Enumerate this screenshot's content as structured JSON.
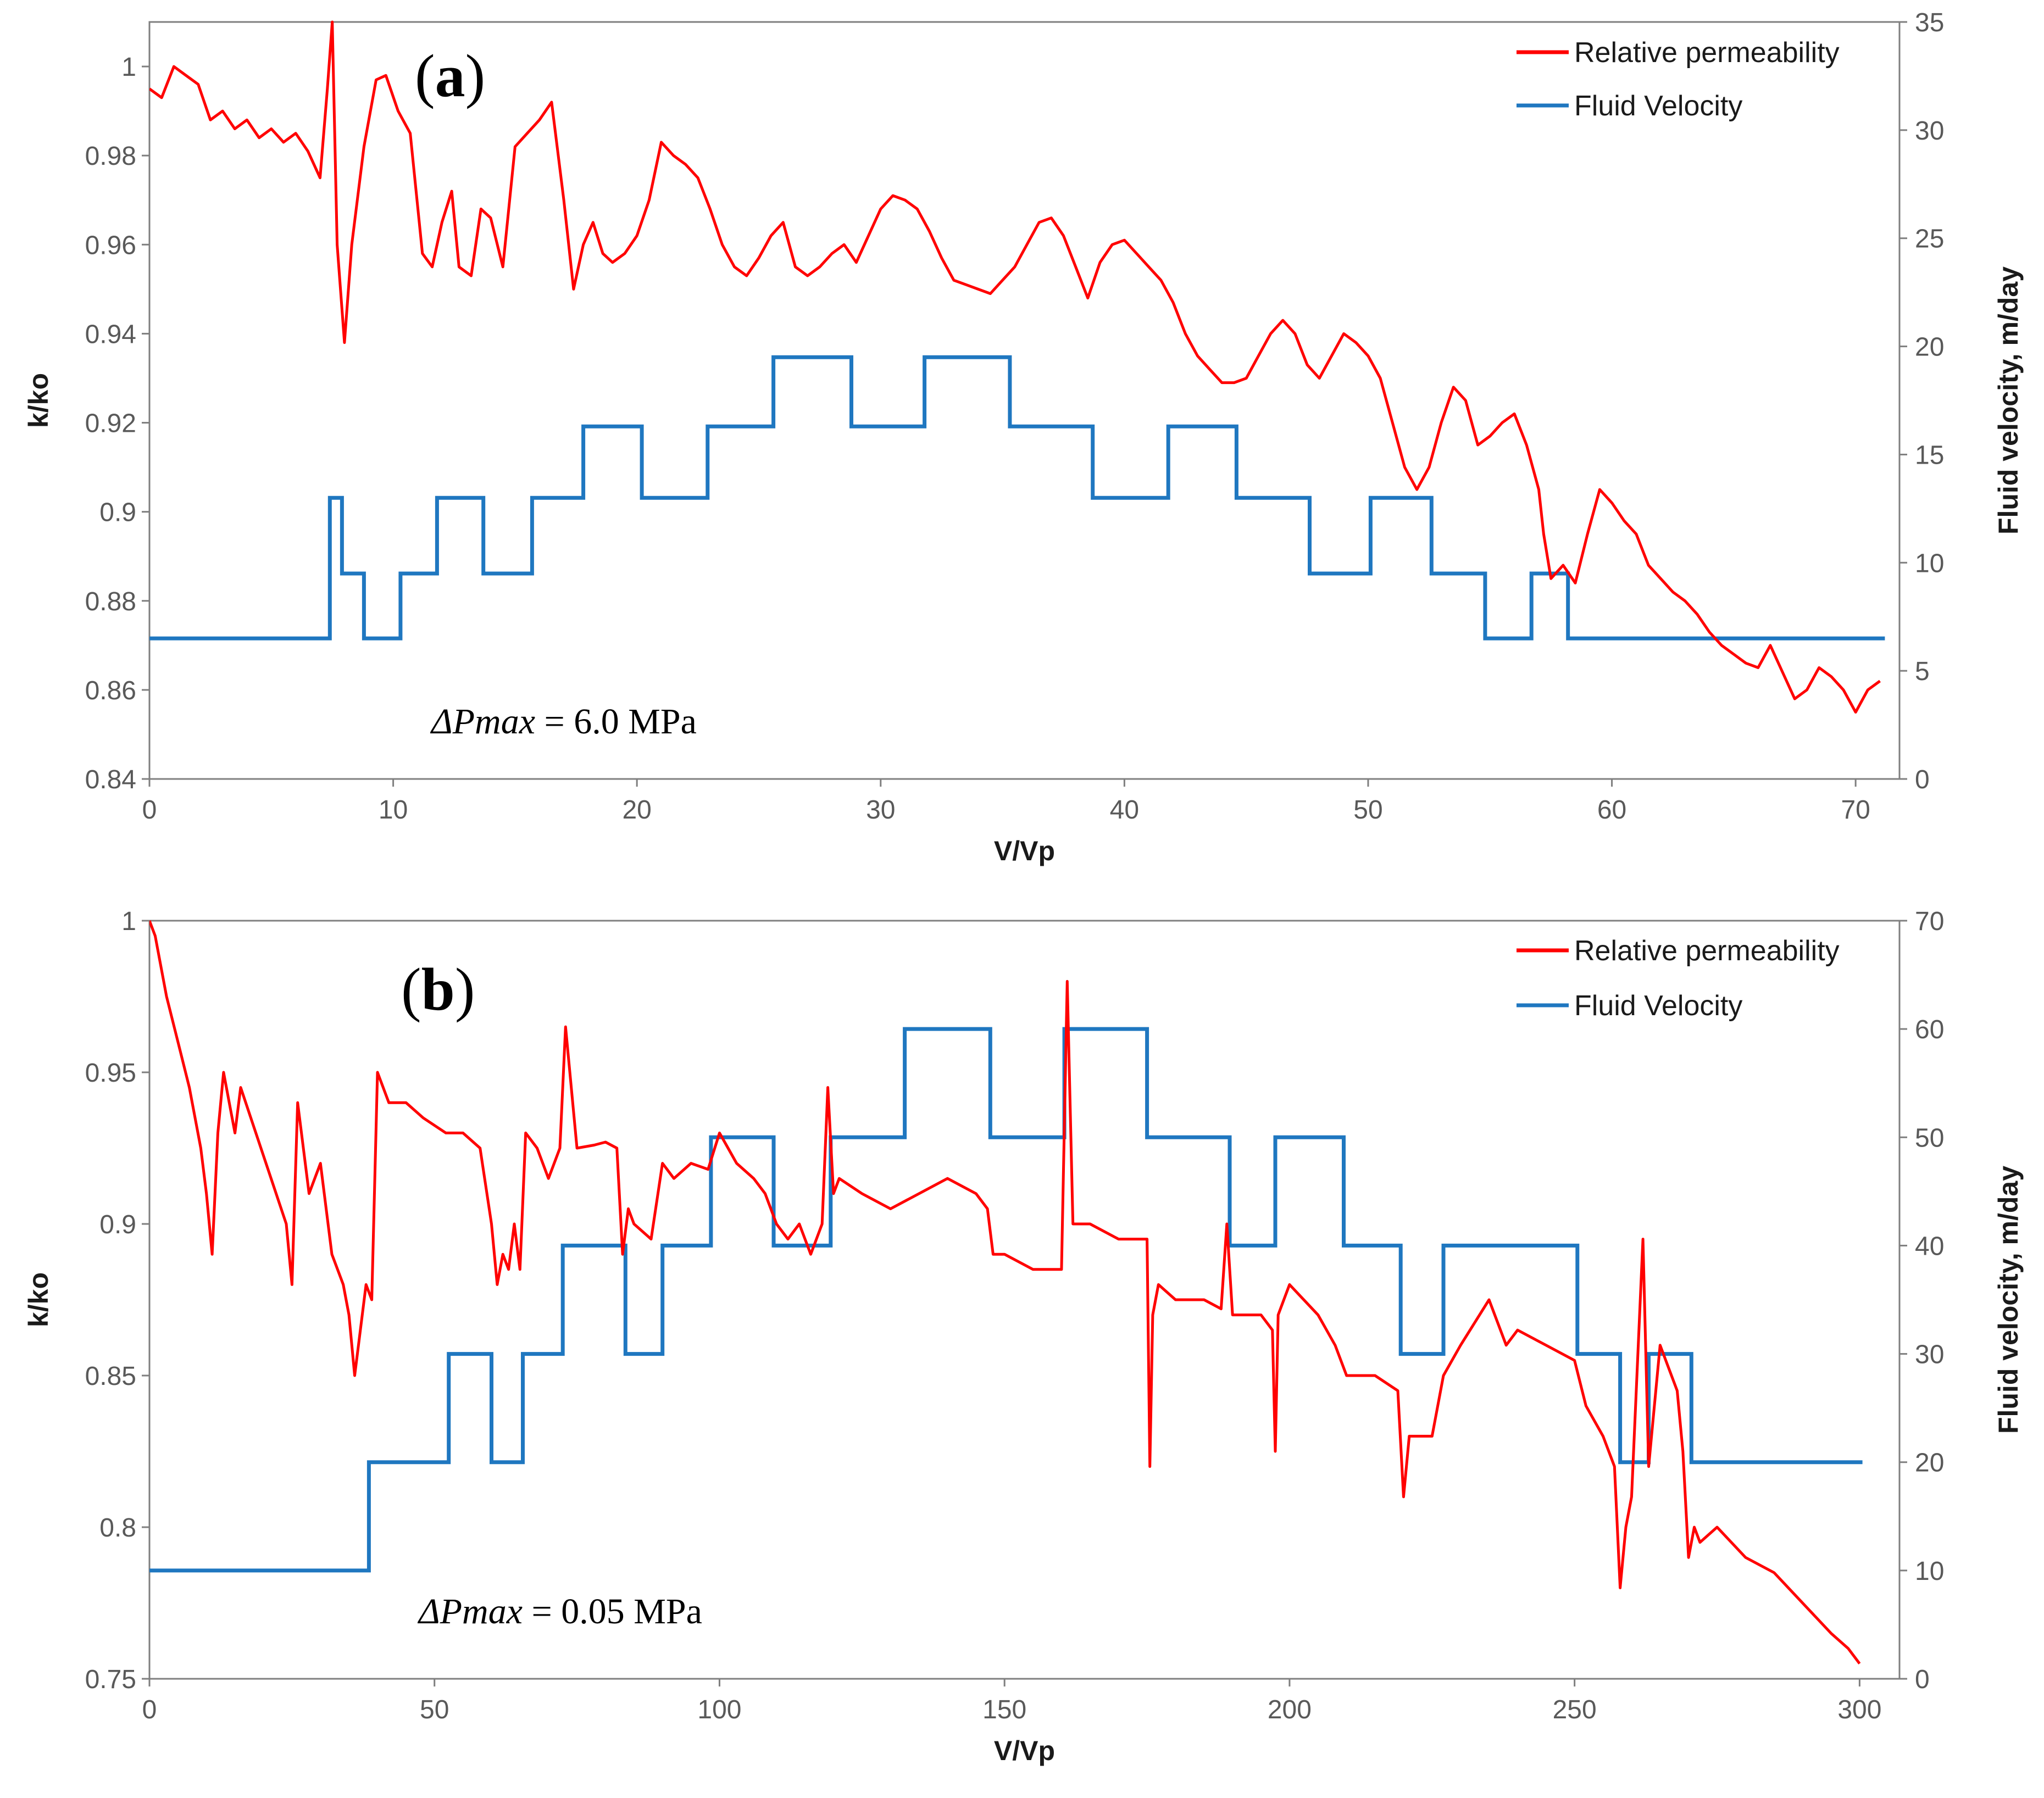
{
  "colors": {
    "permeability": "#ff0000",
    "velocity": "#1f77c0"
  },
  "chart_data": [
    {
      "type": "line",
      "panel_label": "a",
      "xlabel": "V/Vp",
      "ylabel": "k/ko",
      "y2label": "Fluid velocity, m/day",
      "xlim": [
        0,
        71.8
      ],
      "ylim": [
        0.84,
        1.01
      ],
      "y2lim": [
        0,
        35
      ],
      "x_ticks": [
        0,
        10,
        20,
        30,
        40,
        50,
        60,
        70
      ],
      "y_ticks": [
        0.84,
        0.86,
        0.88,
        0.9,
        0.92,
        0.94,
        0.96,
        0.98,
        1
      ],
      "y_tick_labels": [
        "0.84",
        "0.86",
        "0.88",
        "0.9",
        "0.92",
        "0.94",
        "0.96",
        "0.98",
        "1"
      ],
      "y2_ticks": [
        0,
        5,
        10,
        15,
        20,
        25,
        30,
        35
      ],
      "legend": {
        "position": "top-right",
        "entries": [
          "Relative permeability",
          "Fluid Velocity"
        ]
      },
      "annotation": {
        "delta": "ΔPmax",
        "rest": " = 6.0 MPa"
      },
      "grid": false,
      "series": [
        {
          "name": "Relative permeability",
          "axis": "left",
          "x": [
            0,
            0.5,
            1,
            1.5,
            2,
            2.5,
            3,
            3.5,
            4,
            4.5,
            5,
            5.5,
            6,
            6.5,
            7,
            7.3,
            7.5,
            7.7,
            8,
            8.3,
            8.8,
            9.3,
            9.7,
            10.2,
            10.7,
            11.2,
            11.6,
            12,
            12.4,
            12.7,
            13.2,
            13.6,
            14,
            14.5,
            15,
            15.5,
            16,
            16.5,
            17,
            17.4,
            17.8,
            18.2,
            18.6,
            19,
            19.5,
            20,
            20.5,
            21,
            21.5,
            22,
            22.5,
            23,
            23.5,
            24,
            24.5,
            25,
            25.5,
            26,
            26.5,
            27,
            27.5,
            28,
            28.5,
            29,
            29.5,
            30,
            30.5,
            31,
            31.5,
            32,
            32.5,
            33,
            33.5,
            34,
            34.5,
            35,
            35.5,
            36,
            36.5,
            37,
            37.5,
            38,
            38.5,
            39,
            39.5,
            40,
            40.5,
            41,
            41.5,
            42,
            42.5,
            43,
            43.5,
            44,
            44.5,
            45,
            45.5,
            46,
            46.5,
            47,
            47.5,
            48,
            48.5,
            49,
            49.5,
            50,
            50.5,
            51,
            51.5,
            52,
            52.5,
            53,
            53.5,
            54,
            54.5,
            55,
            55.5,
            56,
            56.5,
            57,
            57.2,
            57.5,
            58,
            58.5,
            59,
            59.5,
            60,
            60.5,
            61,
            61.5,
            62,
            62.5,
            63,
            63.5,
            64,
            64.5,
            65,
            65.5,
            66,
            66.5,
            67,
            67.5,
            68,
            68.5,
            69,
            69.5,
            70,
            70.5,
            71
          ],
          "y": [
            0.995,
            0.993,
            1,
            0.998,
            0.996,
            0.988,
            0.99,
            0.986,
            0.988,
            0.984,
            0.986,
            0.983,
            0.985,
            0.981,
            0.975,
            0.995,
            1.01,
            0.96,
            0.938,
            0.96,
            0.982,
            0.997,
            0.998,
            0.99,
            0.985,
            0.958,
            0.955,
            0.965,
            0.972,
            0.955,
            0.953,
            0.968,
            0.966,
            0.955,
            0.982,
            0.985,
            0.988,
            0.992,
            0.97,
            0.95,
            0.96,
            0.965,
            0.958,
            0.956,
            0.958,
            0.962,
            0.97,
            0.983,
            0.98,
            0.978,
            0.975,
            0.968,
            0.96,
            0.955,
            0.953,
            0.957,
            0.962,
            0.965,
            0.955,
            0.953,
            0.955,
            0.958,
            0.96,
            0.956,
            0.962,
            0.968,
            0.971,
            0.97,
            0.968,
            0.963,
            0.957,
            0.952,
            0.951,
            0.95,
            0.949,
            0.952,
            0.955,
            0.96,
            0.965,
            0.966,
            0.962,
            0.955,
            0.948,
            0.956,
            0.96,
            0.961,
            0.958,
            0.955,
            0.952,
            0.947,
            0.94,
            0.935,
            0.932,
            0.929,
            0.929,
            0.93,
            0.935,
            0.94,
            0.943,
            0.94,
            0.933,
            0.93,
            0.935,
            0.94,
            0.938,
            0.935,
            0.93,
            0.92,
            0.91,
            0.905,
            0.91,
            0.92,
            0.928,
            0.925,
            0.915,
            0.917,
            0.92,
            0.922,
            0.915,
            0.905,
            0.895,
            0.885,
            0.888,
            0.884,
            0.895,
            0.905,
            0.902,
            0.898,
            0.895,
            0.888,
            0.885,
            0.882,
            0.88,
            0.877,
            0.873,
            0.87,
            0.868,
            0.866,
            0.865,
            0.87,
            0.864,
            0.858,
            0.86,
            0.865,
            0.863,
            0.86,
            0.855,
            0.86,
            0.862
          ]
        },
        {
          "name": "Fluid Velocity",
          "axis": "right",
          "step_breaks": [
            0,
            7.4,
            7.9,
            8.8,
            10.3,
            11.8,
            13.7,
            15.7,
            17.8,
            20.2,
            22.9,
            25.6,
            28.8,
            31.8,
            35.3,
            38.7,
            41.8,
            44.6,
            47.6,
            50.1,
            52.6,
            54.8,
            56.7,
            58.2,
            71.2
          ],
          "values": [
            6.5,
            13,
            9.5,
            6.5,
            9.5,
            13,
            9.5,
            13,
            16.3,
            13,
            16.3,
            19.5,
            16.3,
            19.5,
            16.3,
            13,
            16.3,
            13,
            9.5,
            13,
            9.5,
            6.5,
            9.5,
            6.5
          ]
        }
      ]
    },
    {
      "type": "line",
      "panel_label": "b",
      "xlabel": "V/Vp",
      "ylabel": "k/ko",
      "y2label": "Fluid velocity, m/day",
      "xlim": [
        0,
        307
      ],
      "ylim": [
        0.75,
        1
      ],
      "y2lim": [
        0,
        70
      ],
      "x_ticks": [
        0,
        50,
        100,
        150,
        200,
        250,
        300
      ],
      "y_ticks": [
        0.75,
        0.8,
        0.85,
        0.9,
        0.95,
        1
      ],
      "y_tick_labels": [
        "0.75",
        "0.8",
        "0.85",
        "0.9",
        "0.95",
        "1"
      ],
      "y2_ticks": [
        0,
        10,
        20,
        30,
        40,
        50,
        60,
        70
      ],
      "legend": {
        "position": "top-right",
        "entries": [
          "Relative permeability",
          "Fluid Velocity"
        ]
      },
      "annotation": {
        "delta": "ΔPmax",
        "rest": " = 0.05 MPa"
      },
      "grid": false,
      "series": [
        {
          "name": "Relative permeability",
          "axis": "left",
          "x": [
            0,
            1,
            3,
            5,
            7,
            9,
            10,
            11,
            12,
            13,
            14,
            15,
            16,
            24,
            25,
            26,
            28,
            30,
            32,
            34,
            35,
            36,
            38,
            39,
            40,
            42,
            45,
            48,
            52,
            55,
            58,
            60,
            61,
            62,
            63,
            64,
            65,
            66,
            68,
            70,
            72,
            73,
            75,
            78,
            80,
            82,
            83,
            84,
            85,
            88,
            90,
            92,
            95,
            98,
            100,
            103,
            106,
            108,
            110,
            112,
            114,
            116,
            118,
            119,
            120,
            121,
            125,
            130,
            135,
            140,
            145,
            147,
            148,
            150,
            155,
            160,
            161,
            162,
            165,
            170,
            175,
            175.5,
            176,
            177,
            180,
            185,
            188,
            189,
            190,
            195,
            197,
            197.5,
            198,
            200,
            205,
            208,
            210,
            212,
            215,
            219,
            220,
            221,
            225,
            227,
            230,
            235,
            238,
            240,
            245,
            250,
            252,
            255,
            257,
            258,
            259,
            260,
            262,
            263,
            265,
            268,
            269,
            270,
            271,
            272,
            275,
            280,
            285,
            290,
            295,
            298,
            300
          ],
          "y": [
            1,
            0.995,
            0.975,
            0.96,
            0.945,
            0.925,
            0.91,
            0.89,
            0.93,
            0.95,
            0.94,
            0.93,
            0.945,
            0.9,
            0.88,
            0.94,
            0.91,
            0.92,
            0.89,
            0.88,
            0.87,
            0.85,
            0.88,
            0.875,
            0.95,
            0.94,
            0.94,
            0.935,
            0.93,
            0.93,
            0.925,
            0.9,
            0.88,
            0.89,
            0.885,
            0.9,
            0.885,
            0.93,
            0.925,
            0.915,
            0.925,
            0.965,
            0.925,
            0.926,
            0.927,
            0.925,
            0.89,
            0.905,
            0.9,
            0.895,
            0.92,
            0.915,
            0.92,
            0.918,
            0.93,
            0.92,
            0.915,
            0.91,
            0.9,
            0.895,
            0.9,
            0.89,
            0.9,
            0.945,
            0.91,
            0.915,
            0.91,
            0.905,
            0.91,
            0.915,
            0.91,
            0.905,
            0.89,
            0.89,
            0.885,
            0.885,
            0.98,
            0.9,
            0.9,
            0.895,
            0.895,
            0.82,
            0.87,
            0.88,
            0.875,
            0.875,
            0.872,
            0.9,
            0.87,
            0.87,
            0.865,
            0.825,
            0.87,
            0.88,
            0.87,
            0.86,
            0.85,
            0.85,
            0.85,
            0.845,
            0.81,
            0.83,
            0.83,
            0.85,
            0.86,
            0.875,
            0.86,
            0.865,
            0.86,
            0.855,
            0.84,
            0.83,
            0.82,
            0.78,
            0.8,
            0.81,
            0.895,
            0.82,
            0.86,
            0.845,
            0.825,
            0.79,
            0.8,
            0.795,
            0.8,
            0.79,
            0.785,
            0.775,
            0.765,
            0.76,
            0.755
          ]
        },
        {
          "name": "Fluid Velocity",
          "axis": "right",
          "step_breaks": [
            0,
            38.5,
            52.5,
            60,
            65.5,
            72.5,
            83.5,
            90,
            98.5,
            109.5,
            119.5,
            132.5,
            147.5,
            160.5,
            175,
            189.5,
            197.5,
            209.5,
            219.5,
            227,
            250.5,
            258,
            263,
            270.5,
            300.5
          ],
          "values": [
            10,
            20,
            30,
            20,
            30,
            40,
            30,
            40,
            50,
            40,
            50,
            60,
            50,
            60,
            50,
            40,
            50,
            40,
            30,
            40,
            30,
            20,
            30,
            20
          ]
        }
      ]
    }
  ]
}
